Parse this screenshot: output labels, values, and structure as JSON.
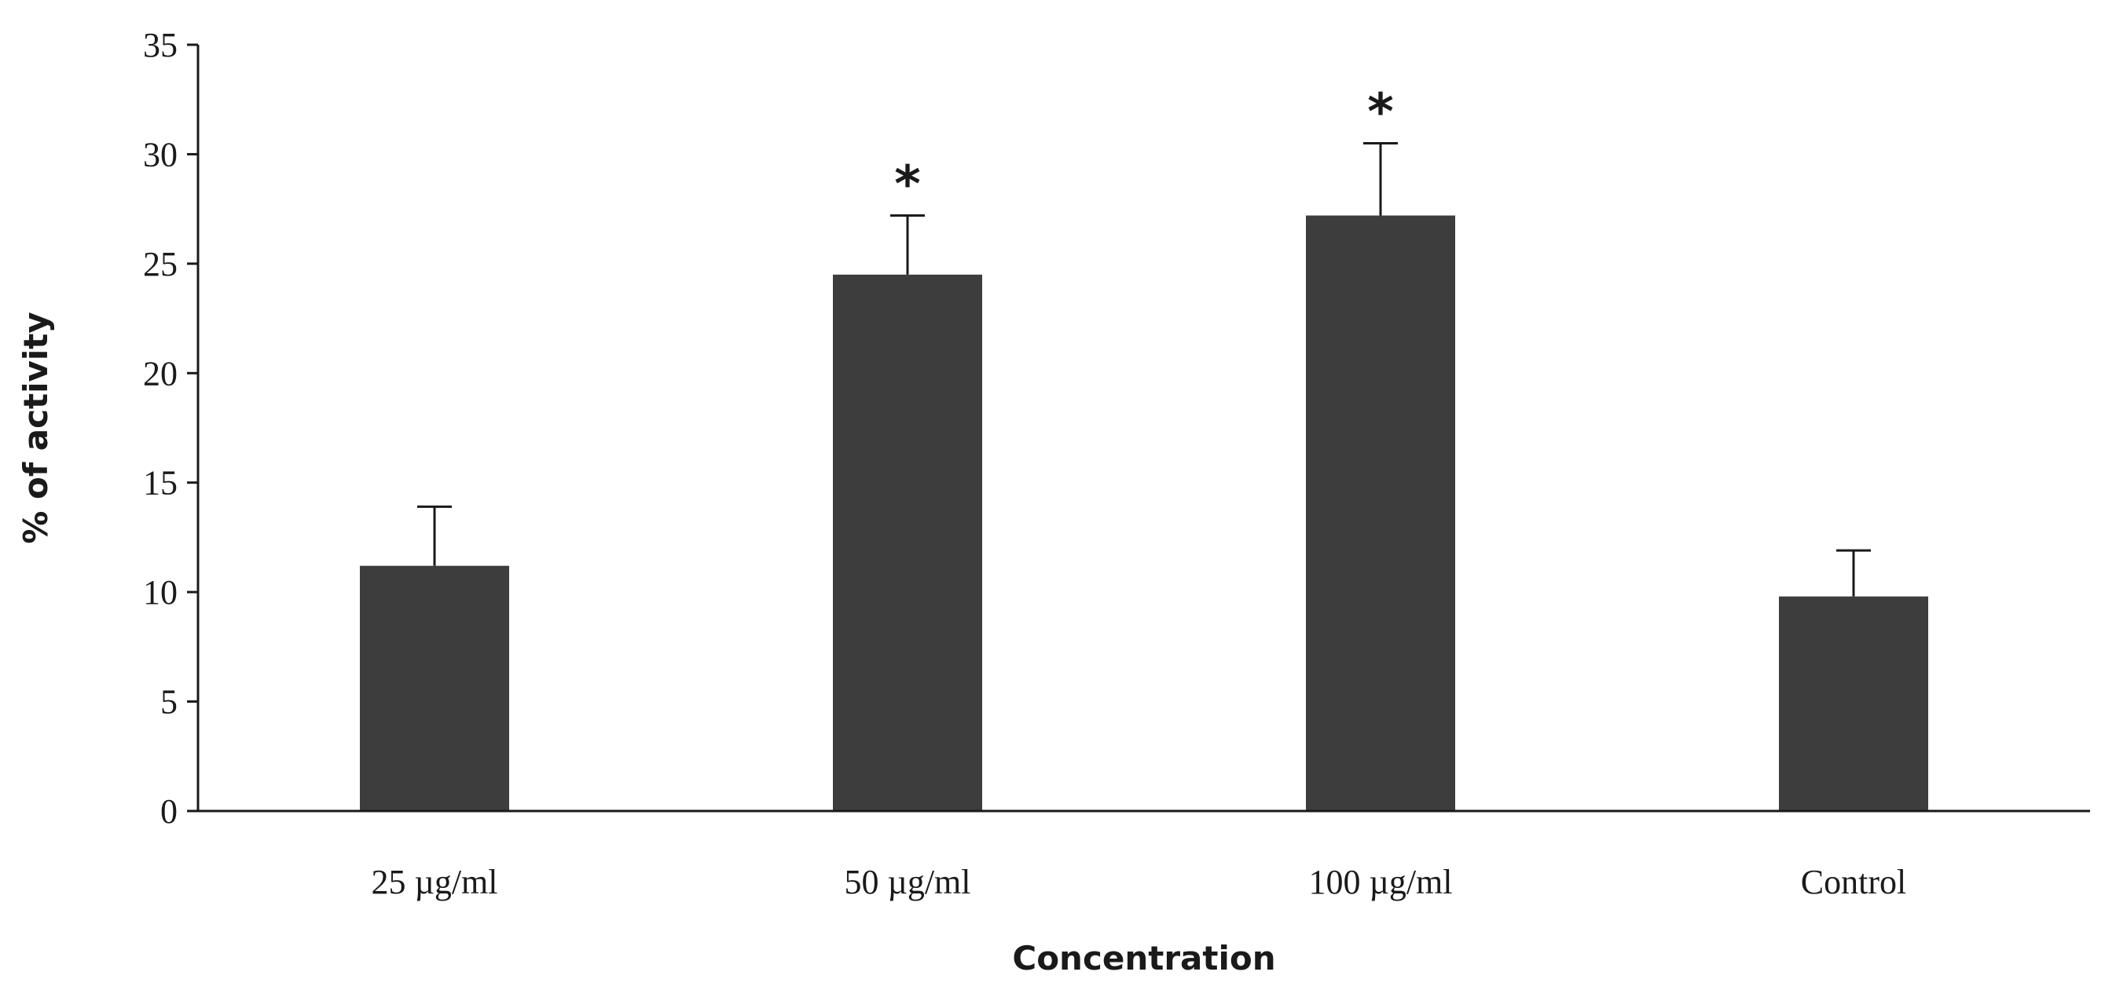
{
  "chart_data": {
    "type": "bar",
    "title": "",
    "xlabel": "Concentration",
    "ylabel": "% of activity",
    "ylim": [
      0,
      35
    ],
    "yticks": [
      "0",
      "5",
      "10",
      "15",
      "20",
      "25",
      "30",
      "35"
    ],
    "categories": [
      "25 µg/ml",
      "50 µg/ml",
      "100 µg/ml",
      "Control"
    ],
    "values": [
      11.2,
      24.5,
      27.2,
      9.8
    ],
    "errors": [
      2.7,
      2.7,
      3.3,
      2.1
    ],
    "annotations": [
      "",
      "*",
      "*",
      ""
    ],
    "bar_color": "#3d3d3d",
    "grid": false
  }
}
